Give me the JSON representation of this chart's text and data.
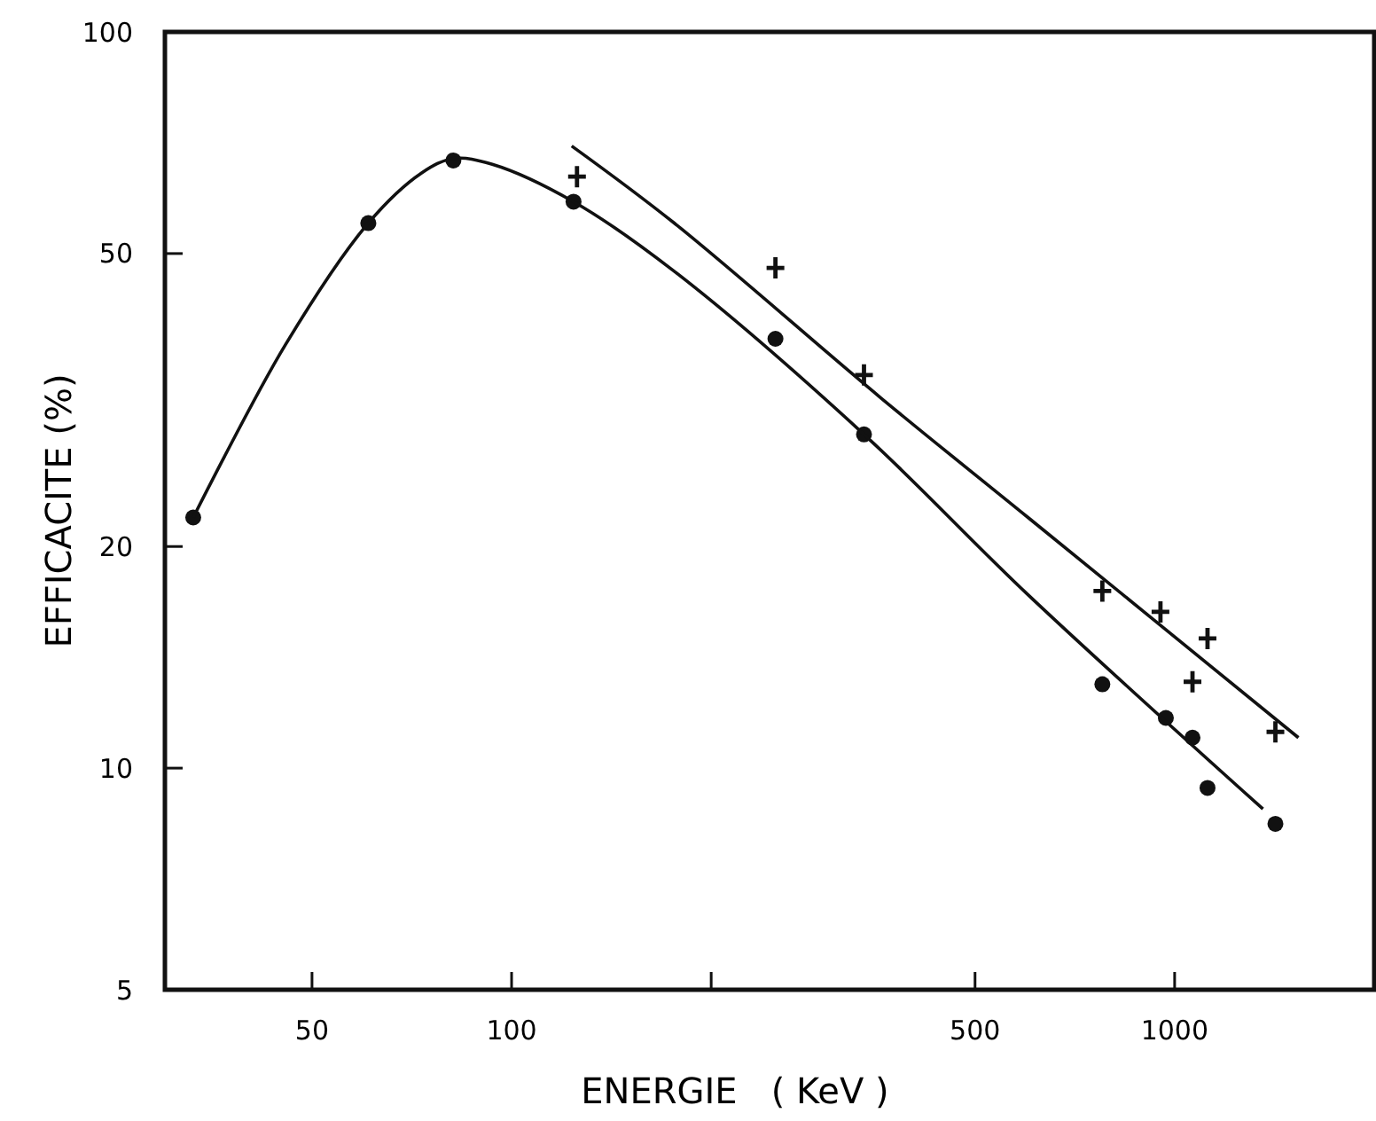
{
  "chart_data": {
    "type": "scatter",
    "xlabel": "ENERGIE   ( KeV )",
    "ylabel": "EFFICACITE (%)",
    "log": "xy",
    "xlim": [
      30,
      2000
    ],
    "ylim": [
      5,
      100
    ],
    "xticks": [
      50,
      100,
      {
        "value": 200,
        "label": null
      },
      500,
      1000
    ],
    "yticks": [
      5,
      10,
      20,
      50,
      100
    ],
    "grid": false,
    "series": [
      {
        "marker": "circle",
        "color": "#111111",
        "x": [
          33.1,
          60.8,
          81.7,
          124,
          250,
          340,
          778,
          970,
          1064,
          1121,
          1419
        ],
        "values": [
          21.9,
          55,
          66.9,
          58.8,
          38.3,
          28.4,
          13.0,
          11.7,
          11.0,
          9.4,
          8.4
        ]
      },
      {
        "marker": "cross",
        "color": "#111111",
        "x": [
          125.5,
          250,
          340,
          778,
          952,
          1121,
          1064,
          1419
        ],
        "values": [
          63.6,
          47.8,
          34.2,
          17.4,
          16.3,
          15.0,
          13.1,
          11.2
        ]
      },
      {
        "type": "line",
        "line_style": "solid",
        "color": "#111111",
        "x": [
          33.1,
          45.6,
          60.8,
          73.1,
          81.7,
          93.5,
          124,
          175.9,
          340,
          601,
          1359
        ],
        "values": [
          21.9,
          37.6,
          55,
          64.3,
          67.3,
          66.1,
          58.8,
          47.3,
          28.4,
          17.2,
          8.8
        ]
      },
      {
        "type": "line",
        "line_style": "solid",
        "color": "#111111",
        "x": [
          123.2,
          175.9,
          361,
          601,
          1537
        ],
        "values": [
          70,
          55,
          31.8,
          21.9,
          11.0
        ]
      }
    ]
  }
}
